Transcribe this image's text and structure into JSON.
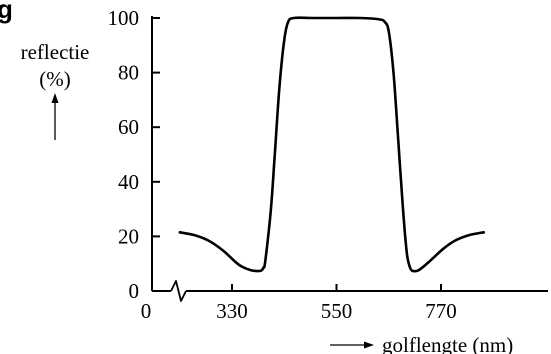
{
  "figure": {
    "corner_label": "g"
  },
  "chart_data": {
    "type": "line",
    "title": "",
    "ylabel_line1": "reflectie",
    "ylabel_line2": "(%)",
    "xlabel": "golflengte (nm)",
    "ylim": [
      0,
      100
    ],
    "yticks": [
      0,
      20,
      40,
      60,
      80,
      100
    ],
    "yticklabels": [
      "0",
      "20",
      "40",
      "60",
      "80",
      "100"
    ],
    "xticks": [
      0,
      330,
      550,
      770
    ],
    "xticklabels": [
      "0",
      "330",
      "550",
      "770"
    ],
    "x_axis_break": true,
    "grid": false,
    "series": [
      {
        "x": [
          220,
          250,
          280,
          310,
          335,
          350,
          370,
          385,
          392,
          396,
          400,
          412,
          420,
          430,
          440,
          448,
          460,
          500,
          550,
          600,
          640,
          652,
          660,
          670,
          680,
          690,
          698,
          704,
          708,
          712,
          720,
          730,
          750,
          775,
          800,
          830,
          860
        ],
        "y": [
          21.5,
          20.5,
          18.5,
          15,
          11,
          9,
          7.6,
          7.3,
          7.5,
          8.5,
          11,
          30,
          50,
          75,
          92,
          98.5,
          100,
          100,
          100,
          100,
          99.5,
          98.5,
          95,
          80,
          55,
          30,
          14,
          9,
          7.6,
          7.3,
          7.4,
          8.5,
          11.5,
          15.5,
          18.5,
          20.5,
          21.5
        ]
      }
    ]
  }
}
